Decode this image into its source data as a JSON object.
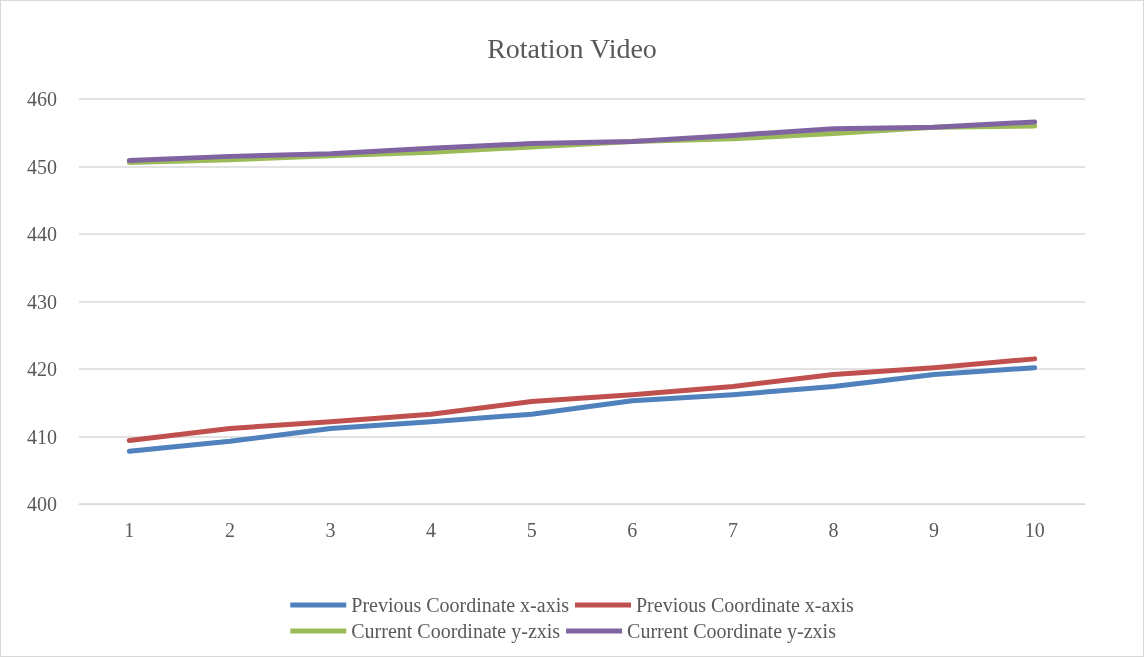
{
  "chart_data": {
    "type": "line",
    "title": "Rotation Video",
    "categories": [
      "1",
      "2",
      "3",
      "4",
      "5",
      "6",
      "7",
      "8",
      "9",
      "10"
    ],
    "series": [
      {
        "name": "Previous Coordinate x-axis",
        "color": "#4f81bd",
        "values": [
          407.8,
          409.3,
          411.2,
          412.2,
          413.3,
          415.3,
          416.2,
          417.4,
          419.2,
          420.2
        ]
      },
      {
        "name": "Previous Coordinate x-axis",
        "color": "#c0504d",
        "values": [
          409.4,
          411.2,
          412.2,
          413.3,
          415.2,
          416.2,
          417.4,
          419.2,
          420.2,
          421.5
        ]
      },
      {
        "name": "Current Coordinate y-zxis",
        "color": "#9bbb59",
        "values": [
          450.6,
          451.0,
          451.6,
          452.1,
          452.9,
          453.7,
          454.1,
          454.9,
          455.8,
          456.0
        ]
      },
      {
        "name": "Current Coordinate y-zxis",
        "color": "#8064a2",
        "values": [
          450.9,
          451.5,
          451.9,
          452.7,
          453.4,
          453.7,
          454.6,
          455.6,
          455.8,
          456.6
        ]
      }
    ],
    "ylim": [
      400,
      460
    ],
    "yticks": [
      400,
      410,
      420,
      430,
      440,
      450,
      460
    ],
    "grid": "y",
    "legend": "bottom",
    "marker": "none",
    "line_style": "solid"
  }
}
